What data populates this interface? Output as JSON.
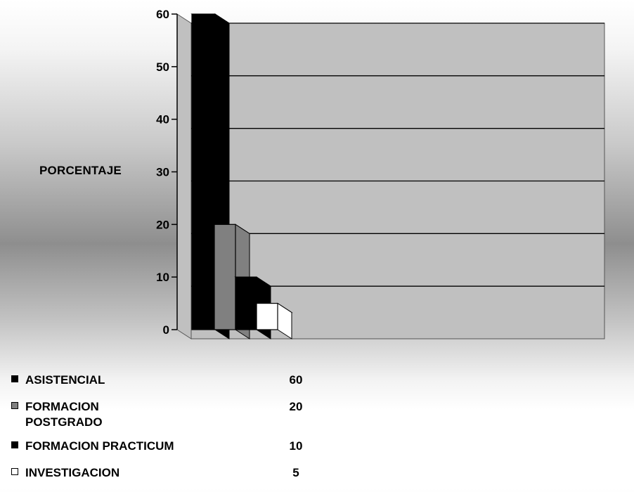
{
  "chart_data": {
    "type": "bar",
    "ylabel": "PORCENTAJE",
    "ylim": [
      0,
      60
    ],
    "yticks": [
      0,
      10,
      20,
      30,
      40,
      50,
      60
    ],
    "grid": true,
    "legend_placement": "bottom",
    "series": [
      {
        "name": "ASISTENCIAL",
        "value": 60,
        "color": "#000000"
      },
      {
        "name": "FORMACION POSTGRADO",
        "value": 20,
        "color": "#808080"
      },
      {
        "name": "FORMACION PRACTICUM",
        "value": 10,
        "color": "#000000"
      },
      {
        "name": "INVESTIGACION",
        "value": 5,
        "color": "#ffffff"
      }
    ],
    "colors": {
      "wall": "#c0c0c0",
      "grid": "#000000",
      "axis": "#000000"
    }
  },
  "legend": {
    "items": [
      {
        "label": "ASISTENCIAL",
        "value": "60"
      },
      {
        "label": "FORMACION POSTGRADO",
        "value": "20"
      },
      {
        "label": "FORMACION PRACTICUM",
        "value": "10"
      },
      {
        "label": "INVESTIGACION",
        "value": "5"
      }
    ]
  }
}
